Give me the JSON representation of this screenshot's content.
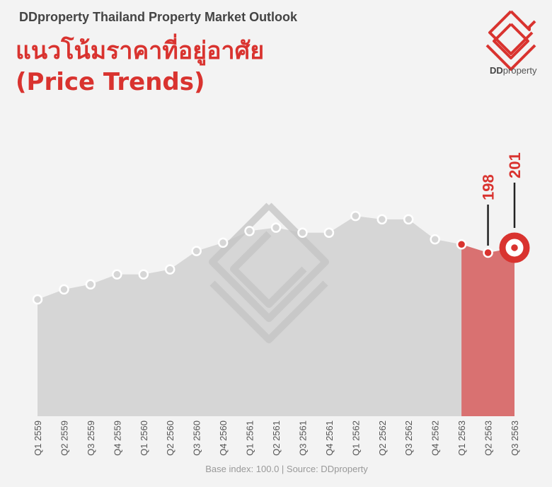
{
  "header": {
    "subtitle": "DDproperty Thailand Property Market Outlook",
    "title_line1": "แนวโน้มราคาที่อยู่อาศัย",
    "title_line2": "(Price Trends)",
    "logo_text_bold": "DD",
    "logo_text_rest": "property"
  },
  "colors": {
    "accent": "#d9332f",
    "area": "#d6d6d6",
    "highlight": "#d97171",
    "background": "#f3f3f3"
  },
  "chart_data": {
    "type": "area",
    "title": "(Price Trends)",
    "categories": [
      "Q1 2559",
      "Q2 2559",
      "Q3 2559",
      "Q4 2559",
      "Q1 2560",
      "Q2 2560",
      "Q3 2560",
      "Q4 2560",
      "Q1 2561",
      "Q2 2561",
      "Q3 2561",
      "Q4 2561",
      "Q1 2562",
      "Q2 2562",
      "Q3 2562",
      "Q4 2562",
      "Q1 2563",
      "Q2 2563",
      "Q3 2563"
    ],
    "values": [
      170,
      176,
      179,
      185,
      185,
      188,
      199,
      204,
      211,
      213,
      210,
      210,
      220,
      218,
      218,
      206,
      203,
      198,
      201
    ],
    "highlight_from": "Q1 2563",
    "data_labels": [
      {
        "category": "Q2 2563",
        "text": "198"
      },
      {
        "category": "Q3 2563",
        "text": "201"
      }
    ],
    "ylim": [
      100,
      300
    ],
    "grid": false,
    "legend": "none"
  },
  "footer": {
    "source": "Base index: 100.0 | Source: DDproperty"
  }
}
